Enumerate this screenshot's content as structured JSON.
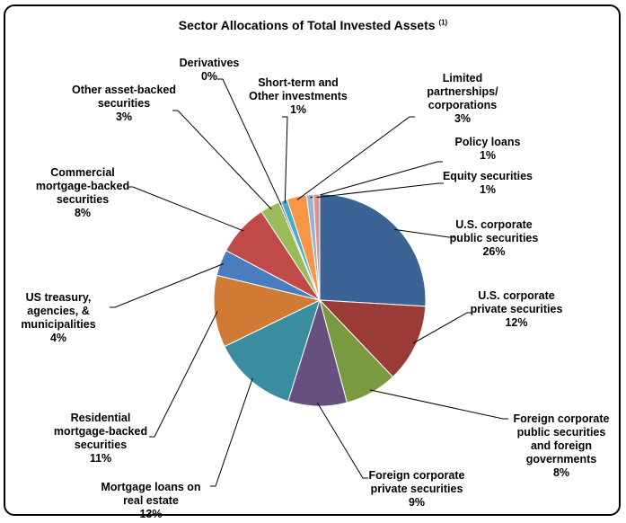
{
  "chart_data": {
    "type": "pie",
    "title": "Sector Allocations of Total Invested Assets",
    "title_footnote": "(1)",
    "slices": [
      {
        "label": "U.S. corporate public securities",
        "value": 26,
        "pct_label": "26%",
        "color": "#3C6396"
      },
      {
        "label": "U.S. corporate private securities",
        "value": 12,
        "pct_label": "12%",
        "color": "#9A3B38"
      },
      {
        "label": "Foreign corporate public securities and foreign governments",
        "value": 8,
        "pct_label": "8%",
        "color": "#7A9A3F"
      },
      {
        "label": "Foreign corporate private securities",
        "value": 9,
        "pct_label": "9%",
        "color": "#66507F"
      },
      {
        "label": "Mortgage loans on real estate",
        "value": 13,
        "pct_label": "13%",
        "color": "#3A8DA0"
      },
      {
        "label": "Residential mortgage-backed securities",
        "value": 11,
        "pct_label": "11%",
        "color": "#D07B35"
      },
      {
        "label": "US treasury, agencies, & municipalities",
        "value": 4,
        "pct_label": "4%",
        "color": "#4A7CC0"
      },
      {
        "label": "Commercial mortgage-backed securities",
        "value": 8,
        "pct_label": "8%",
        "color": "#C04A48"
      },
      {
        "label": "Other asset-backed securities",
        "value": 3,
        "pct_label": "3%",
        "color": "#9BBB59"
      },
      {
        "label": "Derivatives",
        "value": 0.3,
        "pct_label": "0%",
        "color": "#8064A2"
      },
      {
        "label": "Short-term and Other investments",
        "value": 1,
        "pct_label": "1%",
        "color": "#4BACC6"
      },
      {
        "label": "Limited partnerships/ corporations",
        "value": 3,
        "pct_label": "3%",
        "color": "#F79646"
      },
      {
        "label": "Policy loans",
        "value": 1,
        "pct_label": "1%",
        "color": "#95B3D7"
      },
      {
        "label": "Equity securities",
        "value": 1,
        "pct_label": "1%",
        "color": "#D99694"
      }
    ]
  }
}
